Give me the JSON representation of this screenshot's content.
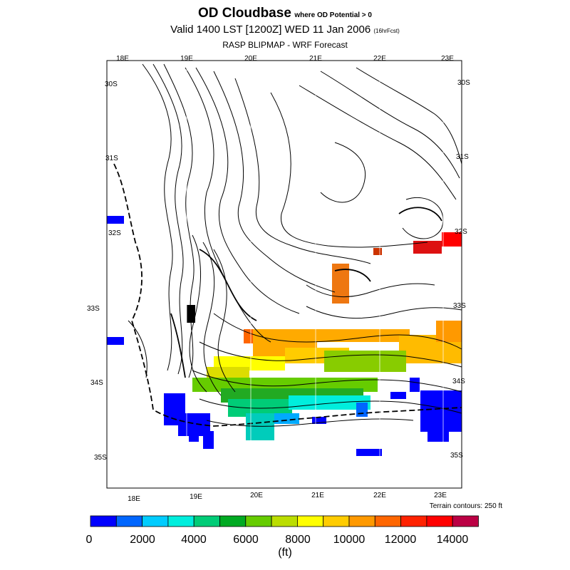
{
  "header": {
    "title": "OD Cloudbase",
    "title_suffix": "where OD Potential > 0",
    "valid_time": "Valid 1400 LST [1200Z] WED 11 Jan 2006",
    "forecast_tag": "(16hrFcst)",
    "model": "RASP BLIPMAP - WRF Forecast"
  },
  "map": {
    "lon_labels_top": [
      "18E",
      "19E",
      "20E",
      "21E",
      "22E",
      "23E"
    ],
    "lon_labels_bottom": [
      "18E",
      "19E",
      "20E",
      "21E",
      "22E",
      "23E"
    ],
    "lat_labels_left": [
      "30S",
      "31S",
      "32S",
      "33S",
      "34S",
      "35S"
    ],
    "lat_labels_right": [
      "30S",
      "31S",
      "32S",
      "33S",
      "34S",
      "35S"
    ],
    "terrain_note": "Terrain contours: 250 ft"
  },
  "legend": {
    "colors": [
      "#0000ff",
      "#0066ff",
      "#00ccff",
      "#00eedd",
      "#00cc77",
      "#00aa22",
      "#66cc00",
      "#bbdd00",
      "#ffff00",
      "#ffcc00",
      "#ff9900",
      "#ff6600",
      "#ff2200",
      "#ff0000",
      "#bb0044"
    ],
    "tick_labels": [
      "0",
      "2000",
      "4000",
      "6000",
      "8000",
      "10000",
      "12000",
      "14000"
    ],
    "units": "(ft)"
  }
}
